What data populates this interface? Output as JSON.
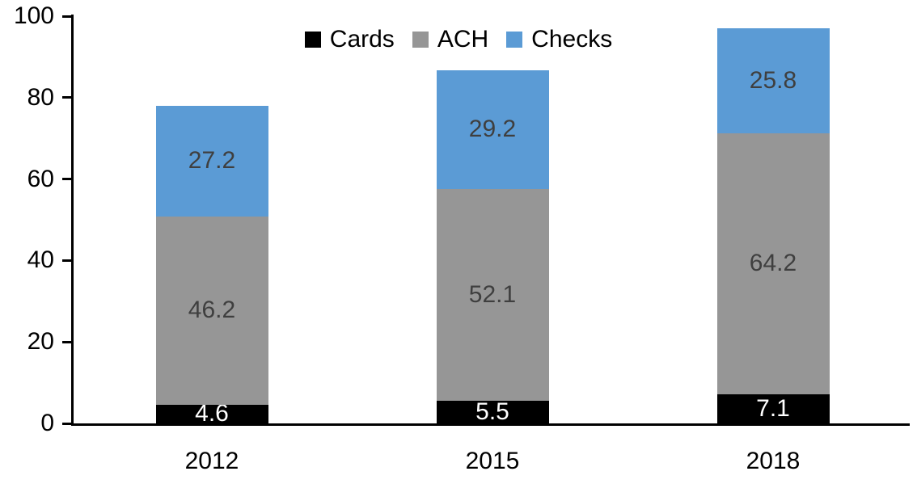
{
  "chart_data": {
    "type": "bar",
    "stacked": true,
    "title": "",
    "xlabel": "",
    "ylabel": "",
    "categories": [
      "2012",
      "2015",
      "2018"
    ],
    "series": [
      {
        "name": "Cards",
        "color": "#000000",
        "label_color": "#ffffff",
        "values": [
          4.6,
          5.5,
          7.1
        ]
      },
      {
        "name": "ACH",
        "color": "#969696",
        "label_color": "#3f3f3f",
        "values": [
          46.2,
          52.1,
          64.2
        ]
      },
      {
        "name": "Checks",
        "color": "#5b9bd5",
        "label_color": "#3f3f3f",
        "values": [
          27.2,
          29.2,
          25.8
        ]
      }
    ],
    "totals": [
      78.0,
      86.8,
      97.1
    ],
    "y_axis": {
      "min": 0,
      "max": 100,
      "tick_interval": 20,
      "ticks": [
        0,
        20,
        40,
        60,
        80,
        100
      ]
    },
    "legend_position": "top-center",
    "grid": false,
    "axis_color": "#000000",
    "background_color": "#ffffff"
  }
}
